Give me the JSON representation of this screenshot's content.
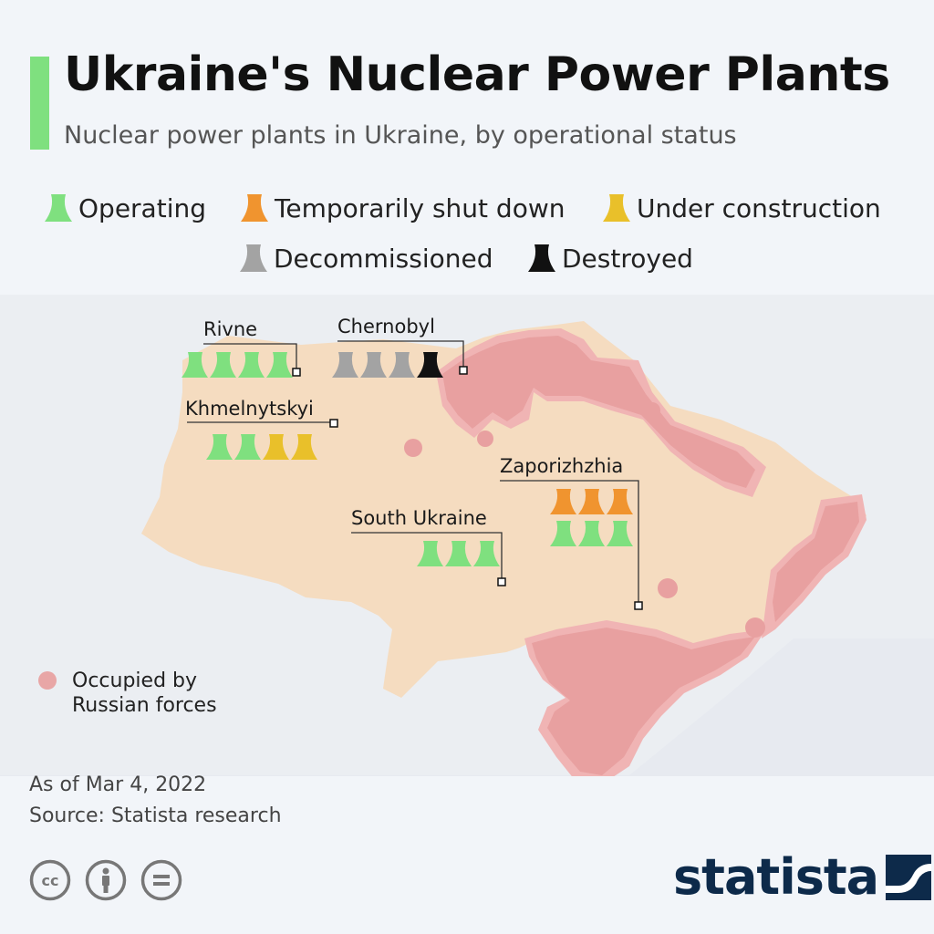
{
  "header": {
    "title": "Ukraine's Nuclear Power Plants",
    "subtitle": "Nuclear power plants in Ukraine, by operational status"
  },
  "legend": {
    "statuses": [
      {
        "key": "operating",
        "label": "Operating",
        "color": "#7fe07f"
      },
      {
        "key": "shutdown",
        "label": "Temporarily shut down",
        "color": "#f0942f"
      },
      {
        "key": "construction",
        "label": "Under construction",
        "color": "#e9c02a"
      },
      {
        "key": "decommissioned",
        "label": "Decommissioned",
        "color": "#a3a3a3"
      },
      {
        "key": "destroyed",
        "label": "Destroyed",
        "color": "#111111"
      }
    ],
    "occupied": {
      "label": "Occupied by Russian forces",
      "color": "#e8a6a6"
    }
  },
  "plants": [
    {
      "name": "Rivne",
      "reactors": [
        "operating",
        "operating",
        "operating",
        "operating"
      ]
    },
    {
      "name": "Chernobyl",
      "reactors": [
        "decommissioned",
        "decommissioned",
        "decommissioned",
        "destroyed"
      ]
    },
    {
      "name": "Khmelnytskyi",
      "reactors": [
        "operating",
        "operating",
        "construction",
        "construction"
      ]
    },
    {
      "name": "Zaporizhzhia",
      "reactors": [
        "shutdown",
        "shutdown",
        "shutdown",
        "operating",
        "operating",
        "operating"
      ]
    },
    {
      "name": "South Ukraine",
      "reactors": [
        "operating",
        "operating",
        "operating"
      ]
    }
  ],
  "colors": {
    "map_fill": "#f5dcc0",
    "occupied_fill": "#e8a0a0",
    "occupied_halo": "#f0b4b4",
    "accent": "#7fe07f",
    "brand": "#0d2a4a"
  },
  "footer": {
    "as_of": "As of Mar 4, 2022",
    "source": "Source: Statista research",
    "brand": "statista",
    "license_icons": [
      "cc-icon",
      "by-icon",
      "nd-icon"
    ]
  }
}
